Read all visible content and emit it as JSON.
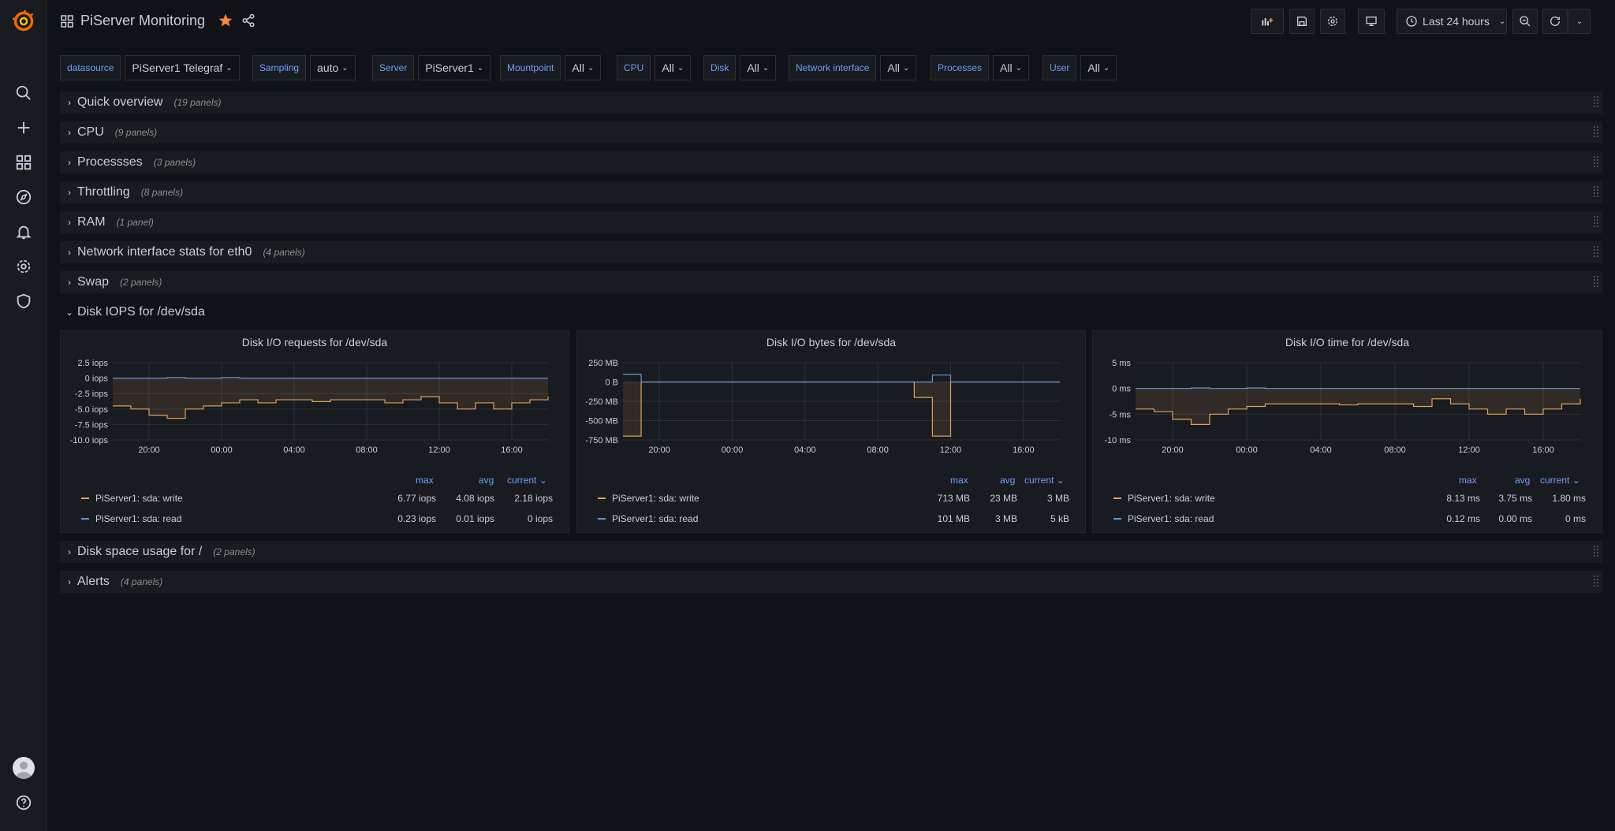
{
  "app": {
    "dashboard_title": "PiServer Monitoring",
    "time_range": "Last 24 hours"
  },
  "colors": {
    "accent": "#6e9fff",
    "star": "#ff8833",
    "write": "#e0a15a",
    "read": "#6794d3"
  },
  "variables": [
    {
      "label": "datasource",
      "value": "PiServer1 Telegraf"
    },
    {
      "label": "Sampling",
      "value": "auto"
    },
    {
      "label": "Server",
      "value": "PiServer1"
    },
    {
      "label": "Mountpoint",
      "value": "All"
    },
    {
      "label": "CPU",
      "value": "All"
    },
    {
      "label": "Disk",
      "value": "All"
    },
    {
      "label": "Network interface",
      "value": "All"
    },
    {
      "label": "Processes",
      "value": "All"
    },
    {
      "label": "User",
      "value": "All"
    }
  ],
  "rows": [
    {
      "title": "Quick overview",
      "count": "(19 panels)"
    },
    {
      "title": "CPU",
      "count": "(9 panels)"
    },
    {
      "title": "Processses",
      "count": "(3 panels)"
    },
    {
      "title": "Throttling",
      "count": "(8 panels)"
    },
    {
      "title": "RAM",
      "count": "(1 panel)"
    },
    {
      "title": "Network interface stats for eth0",
      "count": "(4 panels)"
    },
    {
      "title": "Swap",
      "count": "(2 panels)"
    },
    {
      "title": "Disk IOPS for /dev/sda",
      "count": ""
    },
    {
      "title": "Disk space usage for /",
      "count": "(2 panels)"
    },
    {
      "title": "Alerts",
      "count": "(4 panels)"
    }
  ],
  "legend_headers": {
    "max": "max",
    "avg": "avg",
    "current": "current"
  },
  "panels": [
    {
      "title": "Disk I/O requests for /dev/sda",
      "series": [
        {
          "name": "PiServer1: sda: write",
          "max": "6.77 iops",
          "avg": "4.08 iops",
          "current": "2.18 iops"
        },
        {
          "name": "PiServer1: sda: read",
          "max": "0.23 iops",
          "avg": "0.01 iops",
          "current": "0 iops"
        }
      ]
    },
    {
      "title": "Disk I/O bytes for /dev/sda",
      "series": [
        {
          "name": "PiServer1: sda: write",
          "max": "713 MB",
          "avg": "23 MB",
          "current": "3 MB"
        },
        {
          "name": "PiServer1: sda: read",
          "max": "101 MB",
          "avg": "3 MB",
          "current": "5 kB"
        }
      ]
    },
    {
      "title": "Disk I/O time for /dev/sda",
      "series": [
        {
          "name": "PiServer1: sda: write",
          "max": "8.13 ms",
          "avg": "3.75 ms",
          "current": "1.80 ms"
        },
        {
          "name": "PiServer1: sda: read",
          "max": "0.12 ms",
          "avg": "0.00 ms",
          "current": "0 ms"
        }
      ]
    }
  ],
  "chart_data": [
    {
      "type": "line",
      "title": "Disk I/O requests for /dev/sda",
      "x_ticks": [
        "20:00",
        "00:00",
        "04:00",
        "08:00",
        "12:00",
        "16:00"
      ],
      "y_ticks": [
        "2.5 iops",
        "0 iops",
        "-2.5 iops",
        "-5.0 iops",
        "-7.5 iops",
        "-10.0 iops"
      ],
      "ylim": [
        -10,
        2.5
      ],
      "x_hours": [
        18,
        19,
        20,
        21,
        22,
        23,
        0,
        1,
        2,
        3,
        4,
        5,
        6,
        7,
        8,
        9,
        10,
        11,
        12,
        13,
        14,
        15,
        16,
        17,
        18
      ],
      "series": [
        {
          "name": "PiServer1: sda: write",
          "values": [
            -4.5,
            -5,
            -6,
            -6.5,
            -5,
            -4.5,
            -4,
            -3.5,
            -4,
            -3.5,
            -3.5,
            -3.8,
            -3.5,
            -3.5,
            -3.5,
            -4,
            -3.5,
            -3,
            -4,
            -5,
            -4,
            -5,
            -4,
            -3.5,
            -3
          ]
        },
        {
          "name": "PiServer1: sda: read",
          "values": [
            0,
            0,
            0,
            0.1,
            0,
            0,
            0.1,
            0,
            0,
            0,
            0,
            0,
            0,
            0,
            0,
            0,
            0,
            0,
            0,
            0,
            0,
            0,
            0,
            0,
            0
          ]
        }
      ]
    },
    {
      "type": "line",
      "title": "Disk I/O bytes for /dev/sda",
      "x_ticks": [
        "20:00",
        "00:00",
        "04:00",
        "08:00",
        "12:00",
        "16:00"
      ],
      "y_ticks": [
        "250 MB",
        "0 B",
        "-250 MB",
        "-500 MB",
        "-750 MB"
      ],
      "ylim": [
        -750,
        250
      ],
      "x_hours": [
        18,
        19,
        20,
        21,
        22,
        23,
        0,
        1,
        2,
        3,
        4,
        5,
        6,
        7,
        8,
        9,
        10,
        11,
        12,
        13,
        14,
        15,
        16,
        17,
        18
      ],
      "series": [
        {
          "name": "PiServer1: sda: write",
          "values": [
            -700,
            0,
            0,
            0,
            0,
            0,
            0,
            0,
            0,
            0,
            0,
            0,
            0,
            0,
            0,
            0,
            -200,
            -700,
            0,
            0,
            0,
            0,
            0,
            0,
            0
          ]
        },
        {
          "name": "PiServer1: sda: read",
          "values": [
            101,
            0,
            0,
            0,
            0,
            0,
            0,
            0,
            0,
            0,
            0,
            0,
            0,
            0,
            0,
            0,
            0,
            90,
            0,
            0,
            0,
            0,
            0,
            0,
            0
          ]
        }
      ]
    },
    {
      "type": "line",
      "title": "Disk I/O time for /dev/sda",
      "x_ticks": [
        "20:00",
        "00:00",
        "04:00",
        "08:00",
        "12:00",
        "16:00"
      ],
      "y_ticks": [
        "5 ms",
        "0 ms",
        "-5 ms",
        "-10 ms"
      ],
      "ylim": [
        -10,
        5
      ],
      "x_hours": [
        18,
        19,
        20,
        21,
        22,
        23,
        0,
        1,
        2,
        3,
        4,
        5,
        6,
        7,
        8,
        9,
        10,
        11,
        12,
        13,
        14,
        15,
        16,
        17,
        18
      ],
      "series": [
        {
          "name": "PiServer1: sda: write",
          "values": [
            -4,
            -4.5,
            -6,
            -7,
            -5,
            -4,
            -3.5,
            -3,
            -3,
            -3,
            -3,
            -3.2,
            -3,
            -3,
            -3,
            -3.5,
            -2,
            -3,
            -4,
            -5,
            -4,
            -5,
            -4,
            -3,
            -2
          ]
        },
        {
          "name": "PiServer1: sda: read",
          "values": [
            0,
            0,
            0,
            0.1,
            0,
            0,
            0.1,
            0,
            0,
            0,
            0,
            0,
            0,
            0,
            0,
            0,
            0,
            0,
            0,
            0,
            0,
            0,
            0,
            0,
            0
          ]
        }
      ]
    }
  ]
}
